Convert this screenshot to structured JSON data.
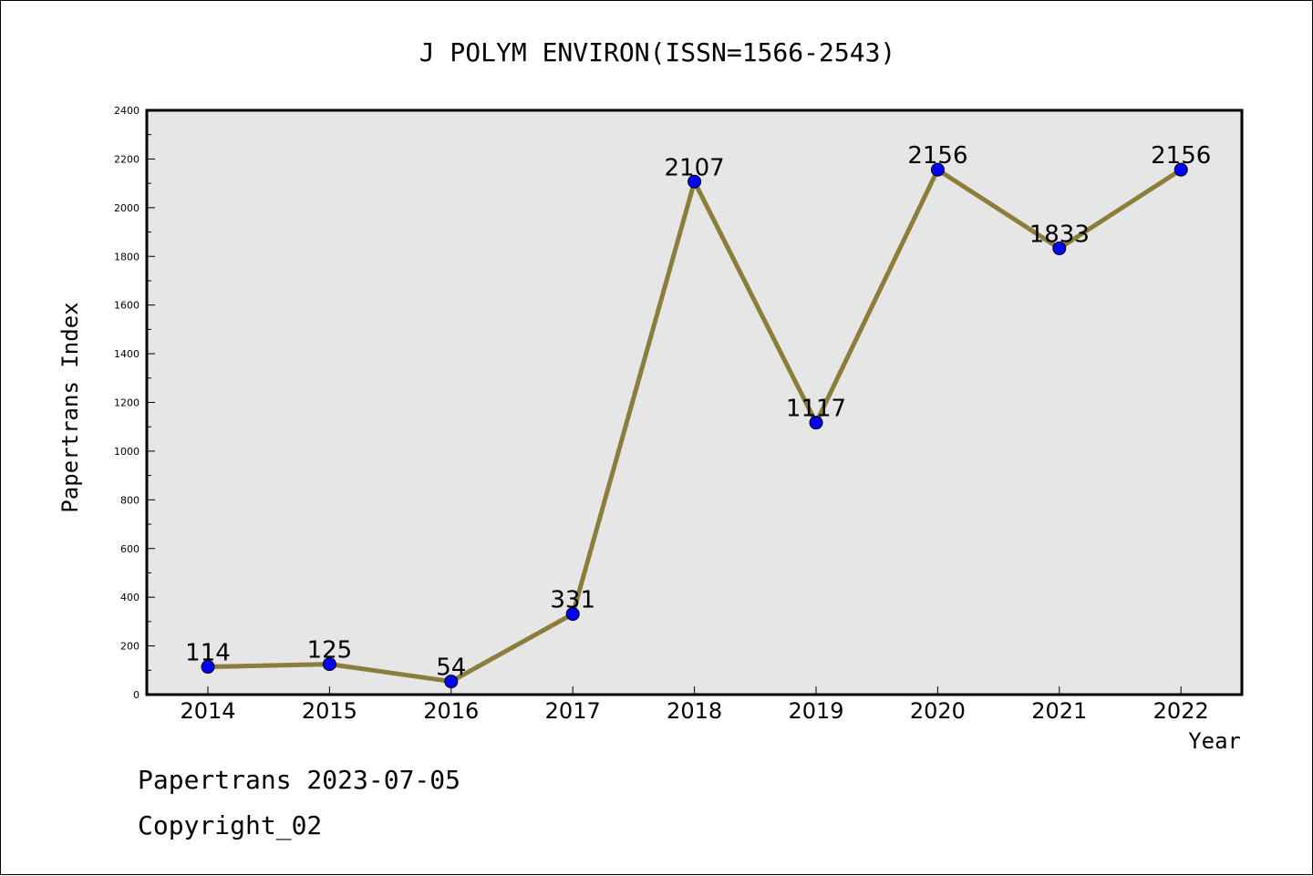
{
  "chart_data": {
    "type": "line",
    "title": "J POLYM ENVIRON(ISSN=1566-2543)",
    "xlabel": "Year",
    "ylabel": "Papertrans Index",
    "categories": [
      "2014",
      "2015",
      "2016",
      "2017",
      "2018",
      "2019",
      "2020",
      "2021",
      "2022"
    ],
    "values": [
      114,
      125,
      54,
      331,
      2107,
      1117,
      2156,
      1833,
      2156
    ],
    "ylim": [
      0,
      2400
    ],
    "yticks": [
      0,
      200,
      400,
      600,
      800,
      1000,
      1200,
      1400,
      1600,
      1800,
      2000,
      2200,
      2400
    ],
    "line_color": "#8b7d3a",
    "marker_color": "#0000ff",
    "plot_background": "#e6e6e6"
  },
  "footer": {
    "line1": "Papertrans 2023-07-05",
    "line2": "Copyright_02"
  }
}
